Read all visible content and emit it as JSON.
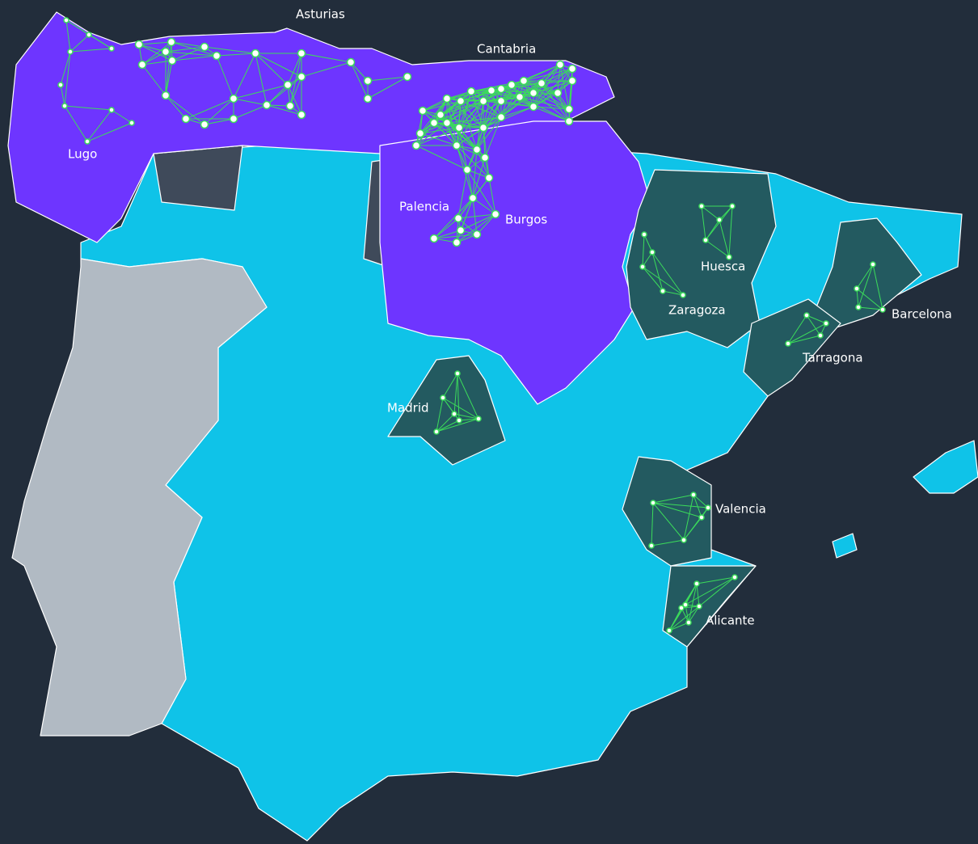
{
  "labels": [
    "Asturias",
    "Cantabria",
    "Lugo",
    "Palencia",
    "Burgos",
    "Huesca",
    "Zaragoza",
    "Barcelona",
    "Tarragona",
    "Madrid",
    "Valencia",
    "Alicante"
  ]
}
